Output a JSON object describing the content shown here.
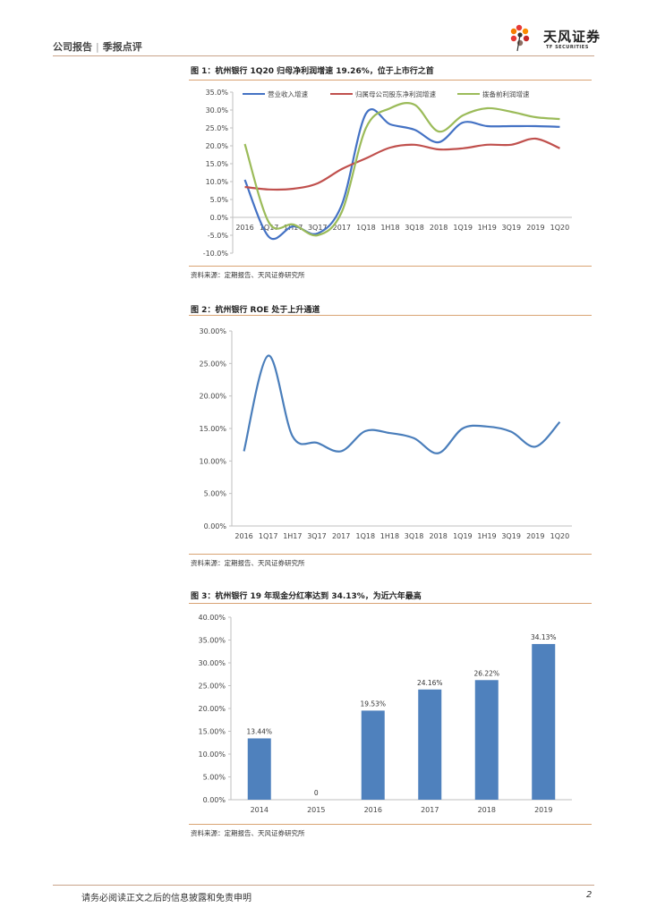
{
  "header": {
    "left_a": "公司报告",
    "separator": "|",
    "left_b": "季报点评",
    "logo_text": "天风证券",
    "logo_sub": "TF SECURITIES"
  },
  "figures": [
    {
      "title": "图 1：杭州银行 1Q20 归母净利润增速 19.26%，位于上市行之首",
      "source": "资料来源：定期报告、天风证券研究所"
    },
    {
      "title": "图 2：杭州银行 ROE 处于上升通道",
      "source": "资料来源：定期报告、天风证券研究所"
    },
    {
      "title": "图 3：杭州银行 19 年现金分红率达到 34.13%，为近六年最高",
      "source": "资料来源：定期报告、天风证券研究所"
    }
  ],
  "chart_data": [
    {
      "type": "line",
      "categories": [
        "2016",
        "1Q17",
        "1H17",
        "3Q17",
        "2017",
        "1Q18",
        "1H18",
        "3Q18",
        "2018",
        "1Q19",
        "1H19",
        "3Q19",
        "2019",
        "1Q20"
      ],
      "yticks": [
        "35.0%",
        "30.0%",
        "25.0%",
        "20.0%",
        "15.0%",
        "10.0%",
        "5.0%",
        "0.0%",
        "-5.0%",
        "-10.0%"
      ],
      "ylim": [
        -10,
        35
      ],
      "series": [
        {
          "name": "营业收入增速",
          "color": "#4472c4",
          "values": [
            10.5,
            -5.5,
            -2.5,
            -4.5,
            3.5,
            29.0,
            26.0,
            24.5,
            21.0,
            26.5,
            25.5,
            25.5,
            25.5,
            25.3
          ]
        },
        {
          "name": "归属母公司股东净利润增速",
          "color": "#c0504d",
          "values": [
            8.5,
            7.8,
            8.0,
            9.5,
            13.5,
            16.5,
            19.5,
            20.3,
            19.0,
            19.3,
            20.3,
            20.3,
            22.0,
            19.3
          ]
        },
        {
          "name": "拨备前利润增速",
          "color": "#9bbb59",
          "values": [
            20.5,
            -1.5,
            -2.0,
            -5.0,
            1.5,
            25.0,
            30.5,
            31.5,
            24.0,
            28.5,
            30.5,
            29.5,
            28.0,
            27.5
          ]
        }
      ]
    },
    {
      "type": "line",
      "categories": [
        "2016",
        "1Q17",
        "1H17",
        "3Q17",
        "2017",
        "1Q18",
        "1H18",
        "3Q18",
        "2018",
        "1Q19",
        "1H19",
        "3Q19",
        "2019",
        "1Q20"
      ],
      "yticks": [
        "30.00%",
        "25.00%",
        "20.00%",
        "15.00%",
        "10.00%",
        "5.00%",
        "0.00%"
      ],
      "ylim": [
        0,
        30
      ],
      "series": [
        {
          "name": "ROE",
          "color": "#4a7ebb",
          "values": [
            11.5,
            26.2,
            13.8,
            12.8,
            11.5,
            14.6,
            14.3,
            13.5,
            11.2,
            15.0,
            15.3,
            14.5,
            12.2,
            16.0
          ]
        }
      ]
    },
    {
      "type": "bar",
      "categories": [
        "2014",
        "2015",
        "2016",
        "2017",
        "2018",
        "2019"
      ],
      "values": [
        13.44,
        0,
        19.53,
        24.16,
        26.22,
        34.13
      ],
      "labels": [
        "13.44%",
        "0",
        "19.53%",
        "24.16%",
        "26.22%",
        "34.13%"
      ],
      "yticks": [
        "40.00%",
        "35.00%",
        "30.00%",
        "25.00%",
        "20.00%",
        "15.00%",
        "10.00%",
        "5.00%",
        "0.00%"
      ],
      "ylim": [
        0,
        40
      ],
      "color": "#4f81bd"
    }
  ],
  "footer": {
    "disclaimer": "请务必阅读正文之后的信息披露和免责申明",
    "page": "2"
  }
}
